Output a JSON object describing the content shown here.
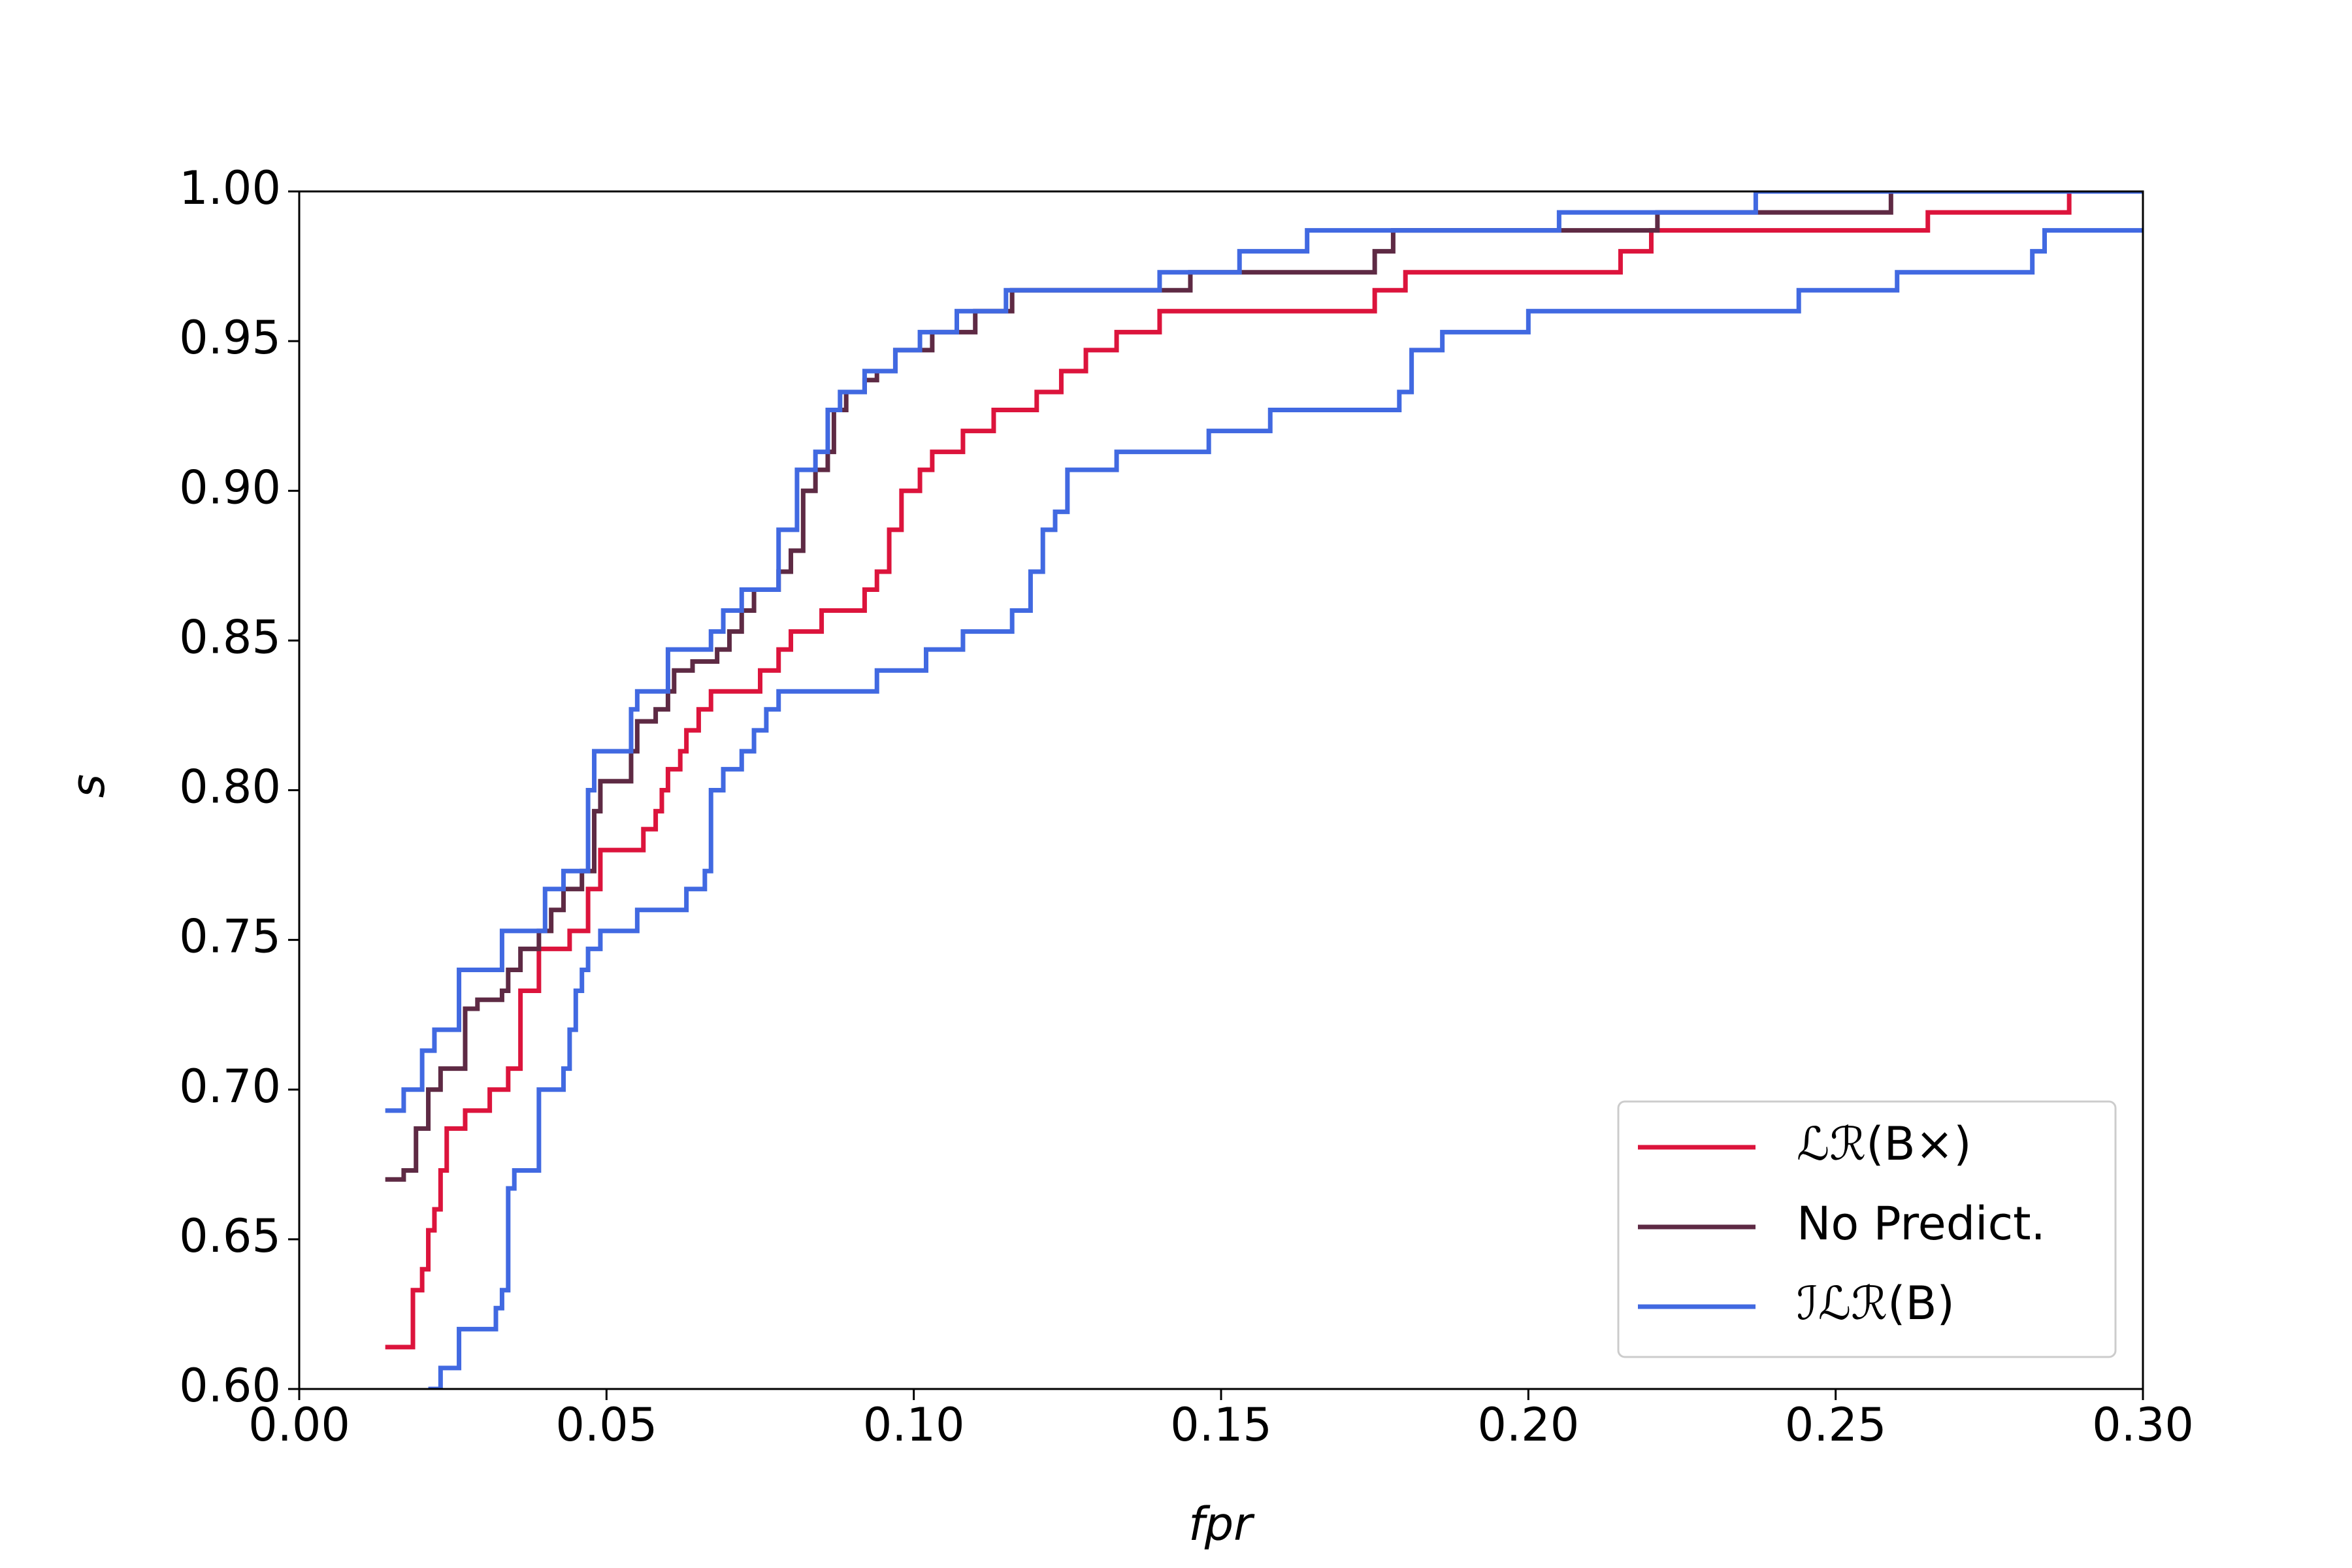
{
  "chart_data": {
    "type": "line",
    "drawstyle": "steps-post",
    "xlabel": "fpr",
    "ylabel": "s",
    "xlim": [
      0,
      0.3
    ],
    "ylim": [
      0.6,
      1.0
    ],
    "xticks": [
      {
        "value": 0,
        "label": "0.00"
      },
      0.05,
      {
        "value": 0.1,
        "label": "0.10"
      },
      0.15,
      {
        "value": 0.2,
        "label": "0.20"
      },
      0.25,
      {
        "value": 0.3,
        "label": "0.30"
      }
    ],
    "yticks": [
      {
        "value": 0.6,
        "label": "0.60"
      },
      0.65,
      {
        "value": 0.7,
        "label": "0.70"
      },
      0.75,
      {
        "value": 0.8,
        "label": "0.80"
      },
      0.85,
      {
        "value": 0.9,
        "label": "0.90"
      },
      0.95,
      {
        "value": 1.0,
        "label": "1.00"
      }
    ],
    "grid": false,
    "legend": "lower right",
    "series": [
      {
        "name": "ℒℛ(B×)",
        "color": "#dc143c",
        "x": [
          0.014,
          0.0185,
          0.02,
          0.021,
          0.022,
          0.023,
          0.024,
          0.027,
          0.031,
          0.034,
          0.036,
          0.039,
          0.044,
          0.047,
          0.049,
          0.056,
          0.058,
          0.059,
          0.06,
          0.062,
          0.063,
          0.065,
          0.067,
          0.075,
          0.078,
          0.08,
          0.085,
          0.092,
          0.094,
          0.096,
          0.098,
          0.101,
          0.103,
          0.108,
          0.113,
          0.12,
          0.124,
          0.128,
          0.133,
          0.14,
          0.175,
          0.18,
          0.215,
          0.22,
          0.265,
          0.288,
          0.3
        ],
        "values": [
          0.614,
          0.633,
          0.64,
          0.653,
          0.66,
          0.673,
          0.687,
          0.693,
          0.7,
          0.707,
          0.733,
          0.747,
          0.753,
          0.767,
          0.78,
          0.787,
          0.793,
          0.8,
          0.807,
          0.813,
          0.82,
          0.827,
          0.833,
          0.84,
          0.847,
          0.853,
          0.86,
          0.867,
          0.873,
          0.887,
          0.9,
          0.907,
          0.913,
          0.92,
          0.927,
          0.933,
          0.94,
          0.947,
          0.953,
          0.96,
          0.967,
          0.973,
          0.98,
          0.987,
          0.993,
          1.0,
          1.0
        ]
      },
      {
        "name": "No Predict.",
        "color": "#5e2a44",
        "x": [
          0.014,
          0.017,
          0.019,
          0.021,
          0.023,
          0.027,
          0.029,
          0.033,
          0.034,
          0.036,
          0.039,
          0.041,
          0.043,
          0.046,
          0.048,
          0.049,
          0.054,
          0.055,
          0.058,
          0.06,
          0.061,
          0.064,
          0.068,
          0.07,
          0.072,
          0.074,
          0.078,
          0.08,
          0.082,
          0.084,
          0.086,
          0.087,
          0.089,
          0.092,
          0.094,
          0.097,
          0.103,
          0.11,
          0.116,
          0.145,
          0.175,
          0.178,
          0.221,
          0.259,
          0.3
        ],
        "values": [
          0.67,
          0.673,
          0.687,
          0.7,
          0.707,
          0.727,
          0.73,
          0.733,
          0.74,
          0.747,
          0.753,
          0.76,
          0.767,
          0.773,
          0.793,
          0.803,
          0.813,
          0.823,
          0.827,
          0.833,
          0.84,
          0.843,
          0.847,
          0.853,
          0.86,
          0.867,
          0.873,
          0.88,
          0.9,
          0.907,
          0.913,
          0.927,
          0.933,
          0.937,
          0.94,
          0.947,
          0.953,
          0.96,
          0.967,
          0.973,
          0.98,
          0.987,
          0.993,
          1.0,
          1.0
        ]
      },
      {
        "name": "ℐℒℛ(B)",
        "color": "#4169e1",
        "x": [
          0.014,
          0.017,
          0.02,
          0.022,
          0.026,
          0.033,
          0.04,
          0.043,
          0.047,
          0.048,
          0.054,
          0.055,
          0.06,
          0.067,
          0.069,
          0.072,
          0.078,
          0.081,
          0.084,
          0.086,
          0.088,
          0.092,
          0.097,
          0.101,
          0.107,
          0.115,
          0.14,
          0.153,
          0.164,
          0.205,
          0.237,
          0.3
        ],
        "values": [
          0.693,
          0.7,
          0.713,
          0.72,
          0.74,
          0.753,
          0.767,
          0.773,
          0.8,
          0.813,
          0.827,
          0.833,
          0.847,
          0.853,
          0.86,
          0.867,
          0.887,
          0.907,
          0.913,
          0.927,
          0.933,
          0.94,
          0.947,
          0.953,
          0.96,
          0.967,
          0.973,
          0.98,
          0.987,
          0.993,
          1.0,
          1.0
        ]
      },
      {
        "color": "#4169e1",
        "x": [
          0.021,
          0.023,
          0.026,
          0.032,
          0.033,
          0.034,
          0.035,
          0.039,
          0.043,
          0.044,
          0.045,
          0.046,
          0.047,
          0.049,
          0.055,
          0.063,
          0.066,
          0.067,
          0.069,
          0.072,
          0.074,
          0.076,
          0.078,
          0.094,
          0.102,
          0.108,
          0.116,
          0.119,
          0.121,
          0.123,
          0.125,
          0.133,
          0.148,
          0.158,
          0.179,
          0.181,
          0.186,
          0.2,
          0.244,
          0.26,
          0.282,
          0.284,
          0.3
        ],
        "values": [
          0.6,
          0.607,
          0.62,
          0.627,
          0.633,
          0.667,
          0.673,
          0.7,
          0.707,
          0.72,
          0.733,
          0.74,
          0.747,
          0.753,
          0.76,
          0.767,
          0.773,
          0.8,
          0.807,
          0.813,
          0.82,
          0.827,
          0.833,
          0.84,
          0.847,
          0.853,
          0.86,
          0.873,
          0.887,
          0.893,
          0.907,
          0.913,
          0.92,
          0.927,
          0.933,
          0.947,
          0.953,
          0.96,
          0.967,
          0.973,
          0.98,
          0.987,
          0.987
        ]
      }
    ]
  }
}
